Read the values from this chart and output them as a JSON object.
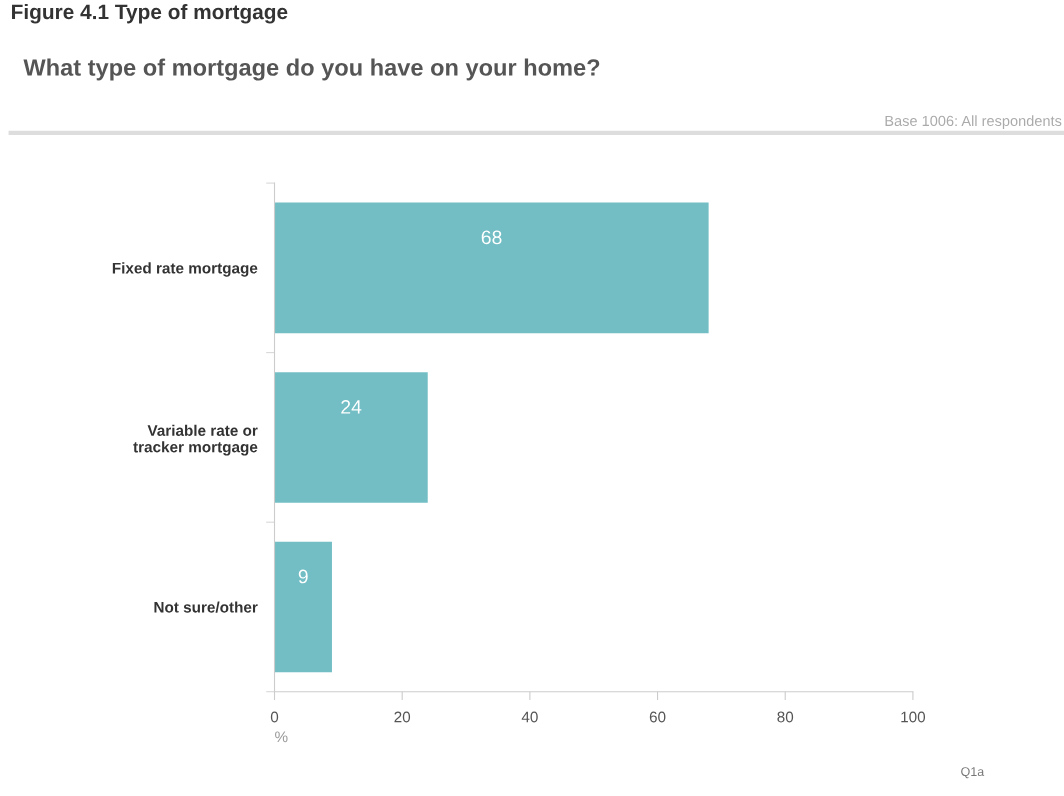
{
  "chart_data": {
    "type": "bar",
    "orientation": "horizontal",
    "title": "What type of mortgage do you have on your home?",
    "annotations": [
      "Figure 4.1 Type of mortgage",
      "Base 1006: All respondents",
      "Q1a"
    ],
    "categories": [
      "Fixed rate mortgage",
      "Variable rate or\ntracker mortgage",
      "Not sure/other"
    ],
    "values": [
      68,
      24,
      9
    ],
    "color": "#72bec4",
    "data_labels": true,
    "xlim": [
      0,
      100
    ],
    "xticks": [
      0,
      20,
      40,
      60,
      80,
      100
    ],
    "xlabel": "%",
    "grid": false,
    "legend": false
  }
}
